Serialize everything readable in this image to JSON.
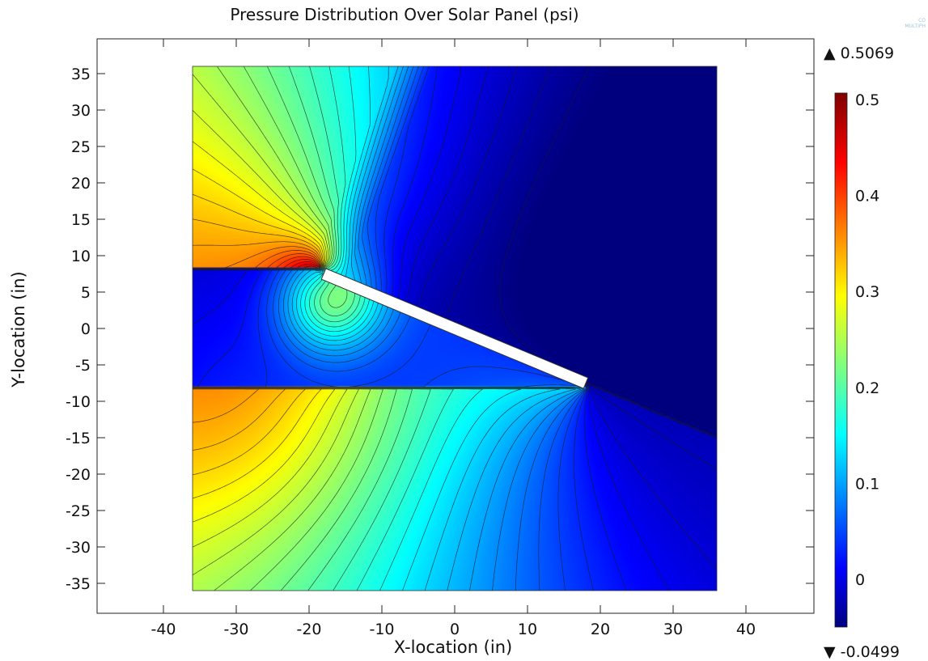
{
  "chart_data": {
    "type": "heatmap",
    "title": "Pressure Distribution Over Solar Panel (psi)",
    "xlabel": "X-location (in)",
    "ylabel": "Y-location (in)",
    "xlim": [
      -50,
      49
    ],
    "ylim": [
      -39,
      39
    ],
    "x_ticks": [
      "-40",
      "-30",
      "-20",
      "-10",
      "0",
      "10",
      "20",
      "30",
      "40"
    ],
    "y_ticks": [
      "35",
      "30",
      "25",
      "20",
      "15",
      "10",
      "5",
      "0",
      "-5",
      "-10",
      "-15",
      "-20",
      "-25",
      "-30",
      "-35"
    ],
    "domain": {
      "x": [
        -36,
        36
      ],
      "y": [
        -36,
        36
      ]
    },
    "panel": {
      "start": [
        -18,
        7.5
      ],
      "end": [
        18,
        -7.5
      ]
    },
    "contour_lines": true,
    "colorbar": {
      "max_label": "▲ 0.5069",
      "min_label": "▼ -0.0499",
      "tick_labels": [
        "0.5",
        "0.4",
        "0.3",
        "0.2",
        "0.1",
        "0"
      ],
      "range": [
        -0.0499,
        0.5069
      ],
      "colormap": "jet"
    }
  }
}
